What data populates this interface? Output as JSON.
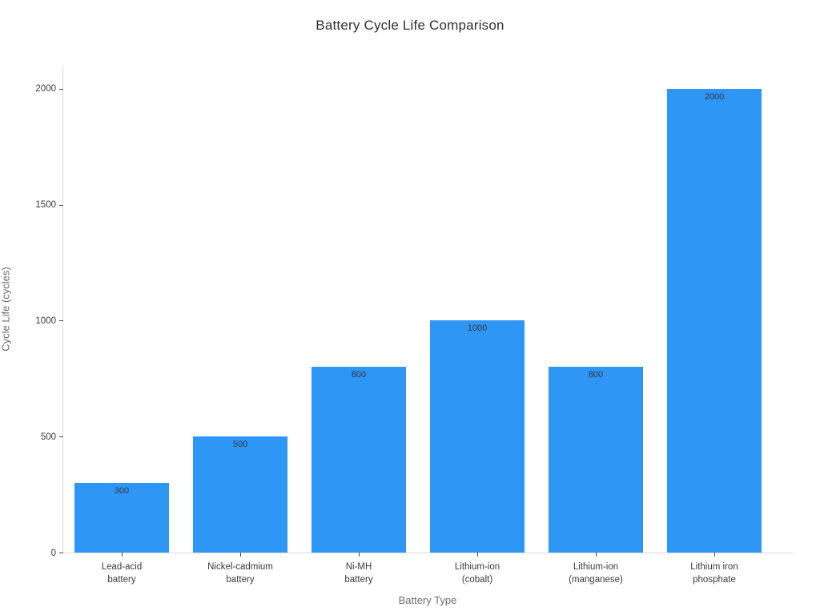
{
  "chart_data": {
    "type": "bar",
    "title": "Battery Cycle Life Comparison",
    "xlabel": "Battery Type",
    "ylabel": "Cycle Life (cycles)",
    "categories": [
      "Lead-acid\nbattery",
      "Nickel-cadmium\nbattery",
      "Ni-MH\nbattery",
      "Lithium-ion\n(cobalt)",
      "Lithium-ion\n(manganese)",
      "Lithium iron\nphosphate"
    ],
    "values": [
      300,
      500,
      800,
      1000,
      800,
      2000
    ],
    "bar_labels": [
      "300",
      "500",
      "800",
      "1000",
      "800",
      "2000"
    ],
    "yticks": [
      0,
      500,
      1000,
      1500,
      2000
    ],
    "ylim": [
      0,
      2100
    ],
    "grid": false,
    "legend": "none",
    "bar_color": "#2e96f5",
    "label_position": "inside-top"
  }
}
